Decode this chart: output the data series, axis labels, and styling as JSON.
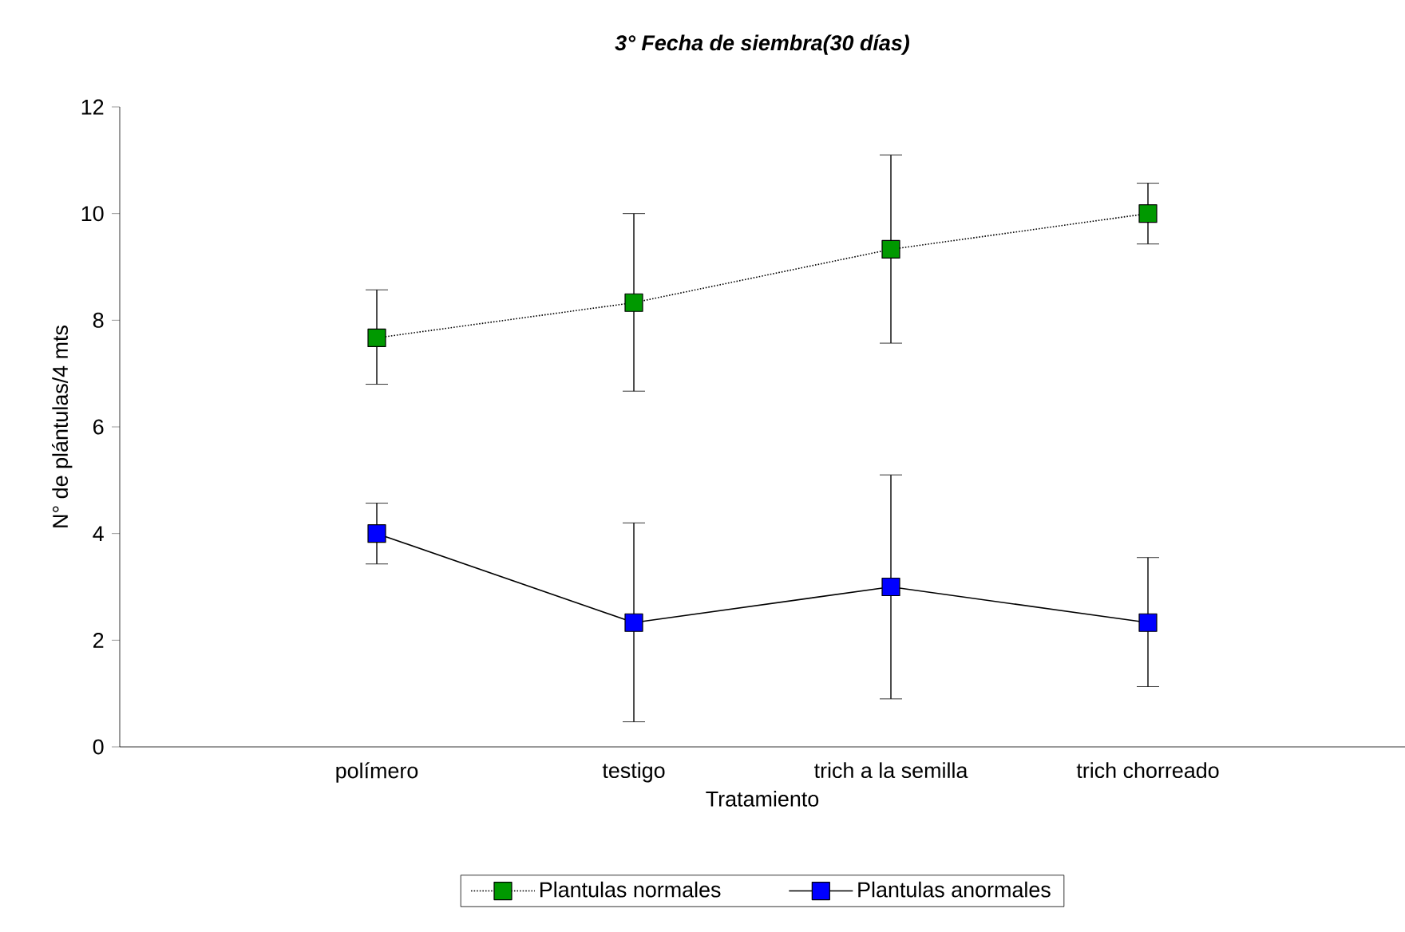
{
  "chart_data": {
    "type": "line",
    "title": "**3° Fecha de siembra(30 días)**",
    "xlabel": "Tratamiento",
    "ylabel": "N° de plántulas/4 mts",
    "categories": [
      "polímero",
      "testigo",
      "trich a la semilla",
      "trich chorreado"
    ],
    "series": [
      {
        "name": "Plantulas normales",
        "color": "#009900",
        "line_style": "dotted",
        "values": [
          7.67,
          8.33,
          9.33,
          10.0
        ],
        "errors": [
          [
            6.8,
            8.57
          ],
          [
            6.67,
            10.0
          ],
          [
            7.57,
            11.1
          ],
          [
            9.43,
            10.57
          ]
        ]
      },
      {
        "name": "Plantulas anormales",
        "color": "#0000ff",
        "line_style": "solid",
        "values": [
          4.0,
          2.33,
          3.0,
          2.33
        ],
        "errors": [
          [
            3.43,
            4.57
          ],
          [
            0.47,
            4.2
          ],
          [
            0.9,
            5.1
          ],
          [
            1.13,
            3.55
          ]
        ]
      }
    ],
    "ylim": [
      0,
      12
    ],
    "yticks": [
      0,
      2,
      4,
      6,
      8,
      10,
      12
    ],
    "marker": "square",
    "grid": false,
    "legend": "bottom"
  }
}
